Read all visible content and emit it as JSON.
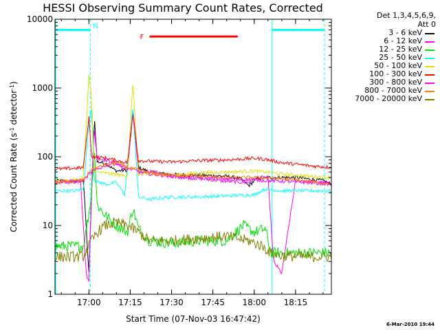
{
  "title": "HESSI Observing Summary Count Rates, Corrected",
  "ylabel": "Corrected Count Rate (s^-1 detector^-1)",
  "xlabel": "Start Time (07-Nov-03 16:47:42)",
  "legend": {
    "title_lines": [
      "Det 1,3,4,5,6,9,",
      "Att 0"
    ]
  },
  "footer": "6-Mar-2010 19:44",
  "chart_data": {
    "type": "line",
    "title": "HESSI Observing Summary Count Rates, Corrected",
    "xlabel": "Start Time (07-Nov-03 16:47:42)",
    "ylabel": "Corrected Count Rate (s^-1 detector^-1)",
    "yscale": "log",
    "ylim": [
      1,
      10000
    ],
    "xlim": [
      "16:47:42",
      "18:28:00"
    ],
    "xticks": [
      "17:00",
      "17:15",
      "17:30",
      "17:45",
      "18:00",
      "18:15"
    ],
    "yticks": [
      "1",
      "10",
      "100",
      "1000",
      "10000"
    ],
    "grid": false,
    "legend_position": "right",
    "series": [
      {
        "name": "3 - 6 keV",
        "color": "#000000",
        "points": [
          [
            "16:47:42",
            45
          ],
          [
            "16:55",
            44
          ],
          [
            "16:58",
            46
          ],
          [
            "17:00",
            2
          ],
          [
            "17:01",
            30
          ],
          [
            "17:02",
            380
          ],
          [
            "17:03",
            85
          ],
          [
            "17:06",
            80
          ],
          [
            "17:10",
            62
          ],
          [
            "17:14",
            64
          ],
          [
            "17:16",
            440
          ],
          [
            "17:18",
            70
          ],
          [
            "17:22",
            60
          ],
          [
            "17:30",
            55
          ],
          [
            "17:40",
            54
          ],
          [
            "17:50",
            52
          ],
          [
            "17:55",
            48
          ],
          [
            "17:58",
            38
          ],
          [
            "18:01",
            48
          ],
          [
            "18:06",
            50
          ],
          [
            "18:15",
            50
          ],
          [
            "18:25",
            45
          ],
          [
            "18:28",
            40
          ]
        ]
      },
      {
        "name": "6 - 12 keV",
        "color": "#ff00ff",
        "points": [
          [
            "16:47:42",
            42
          ],
          [
            "16:55",
            43
          ],
          [
            "16:57",
            45
          ],
          [
            "16:59",
            2
          ],
          [
            "17:00",
            1.5
          ],
          [
            "17:01",
            40
          ],
          [
            "17:02",
            260
          ],
          [
            "17:03",
            95
          ],
          [
            "17:06",
            90
          ],
          [
            "17:10",
            80
          ],
          [
            "17:14",
            62
          ],
          [
            "17:16",
            520
          ],
          [
            "17:18",
            55
          ],
          [
            "17:22",
            62
          ],
          [
            "17:30",
            52
          ],
          [
            "17:40",
            48
          ],
          [
            "17:50",
            44
          ],
          [
            "17:58",
            42
          ],
          [
            "18:01",
            50
          ],
          [
            "18:05",
            50
          ],
          [
            "18:07",
            3
          ],
          [
            "18:10",
            2
          ],
          [
            "18:15",
            45
          ],
          [
            "18:25",
            42
          ],
          [
            "18:28",
            40
          ]
        ]
      },
      {
        "name": "12 - 25 keV",
        "color": "#00e000",
        "points": [
          [
            "16:47:42",
            5
          ],
          [
            "16:55",
            5
          ],
          [
            "16:58",
            5
          ],
          [
            "17:00",
            15
          ],
          [
            "17:01",
            30
          ],
          [
            "17:02",
            140
          ],
          [
            "17:03",
            20
          ],
          [
            "17:06",
            14
          ],
          [
            "17:10",
            10
          ],
          [
            "17:14",
            8
          ],
          [
            "17:16",
            18
          ],
          [
            "17:18",
            9
          ],
          [
            "17:22",
            6
          ],
          [
            "17:30",
            5.5
          ],
          [
            "17:40",
            6
          ],
          [
            "17:50",
            6
          ],
          [
            "17:56",
            10
          ],
          [
            "18:00",
            8
          ],
          [
            "18:04",
            9
          ],
          [
            "18:06",
            4
          ],
          [
            "18:10",
            4
          ],
          [
            "18:20",
            4
          ],
          [
            "18:28",
            4
          ]
        ]
      },
      {
        "name": "25 - 50 keV",
        "color": "#00ffff",
        "points": [
          [
            "16:47:42",
            32
          ],
          [
            "16:55",
            32
          ],
          [
            "16:58",
            34
          ],
          [
            "17:00",
            300
          ],
          [
            "17:01",
            520
          ],
          [
            "17:02",
            45
          ],
          [
            "17:06",
            40
          ],
          [
            "17:10",
            42
          ],
          [
            "17:13",
            28
          ],
          [
            "17:16",
            520
          ],
          [
            "17:18",
            26
          ],
          [
            "17:22",
            24
          ],
          [
            "17:30",
            26
          ],
          [
            "17:40",
            26
          ],
          [
            "17:50",
            27
          ],
          [
            "18:00",
            28
          ],
          [
            "18:04",
            34
          ],
          [
            "18:10",
            32
          ],
          [
            "18:20",
            32
          ],
          [
            "18:28",
            32
          ]
        ]
      },
      {
        "name": "50 - 100 keV",
        "color": "#e0e000",
        "points": [
          [
            "16:47:42",
            44
          ],
          [
            "16:55",
            46
          ],
          [
            "16:58",
            48
          ],
          [
            "17:00",
            1500
          ],
          [
            "17:01",
            700
          ],
          [
            "17:02",
            60
          ],
          [
            "17:06",
            58
          ],
          [
            "17:10",
            55
          ],
          [
            "17:14",
            52
          ],
          [
            "17:16",
            1250
          ],
          [
            "17:18",
            55
          ],
          [
            "17:22",
            55
          ],
          [
            "17:30",
            54
          ],
          [
            "17:40",
            58
          ],
          [
            "17:50",
            60
          ],
          [
            "18:00",
            62
          ],
          [
            "18:04",
            60
          ],
          [
            "18:10",
            56
          ],
          [
            "18:20",
            52
          ],
          [
            "18:28",
            50
          ]
        ]
      },
      {
        "name": "100 - 300 keV",
        "color": "#ff0000",
        "points": [
          [
            "16:47:42",
            66
          ],
          [
            "16:55",
            68
          ],
          [
            "16:58",
            70
          ],
          [
            "17:00",
            380
          ],
          [
            "17:01",
            100
          ],
          [
            "17:06",
            96
          ],
          [
            "17:10",
            88
          ],
          [
            "17:14",
            82
          ],
          [
            "17:16",
            420
          ],
          [
            "17:18",
            88
          ],
          [
            "17:22",
            86
          ],
          [
            "17:30",
            84
          ],
          [
            "17:40",
            88
          ],
          [
            "17:50",
            90
          ],
          [
            "18:00",
            95
          ],
          [
            "18:04",
            92
          ],
          [
            "18:10",
            82
          ],
          [
            "18:20",
            74
          ],
          [
            "18:28",
            70
          ]
        ]
      },
      {
        "name": "300 - 800 keV",
        "color": "#ff00ff",
        "points": [
          [
            "16:47:42",
            43
          ],
          [
            "16:55",
            44
          ],
          [
            "16:58",
            45
          ],
          [
            "17:01",
            60
          ],
          [
            "17:06",
            75
          ],
          [
            "17:10",
            80
          ],
          [
            "17:14",
            68
          ],
          [
            "17:18",
            62
          ],
          [
            "17:22",
            56
          ],
          [
            "17:30",
            52
          ],
          [
            "17:40",
            50
          ],
          [
            "17:50",
            48
          ],
          [
            "18:00",
            46
          ],
          [
            "18:10",
            44
          ],
          [
            "18:20",
            42
          ],
          [
            "18:28",
            40
          ]
        ]
      },
      {
        "name": "800 - 7000 keV",
        "color": "#ff8000",
        "points": [
          [
            "16:47:42",
            42
          ],
          [
            "16:55",
            44
          ],
          [
            "16:58",
            46
          ],
          [
            "17:01",
            66
          ],
          [
            "17:06",
            76
          ],
          [
            "17:10",
            82
          ],
          [
            "17:14",
            70
          ],
          [
            "17:18",
            64
          ],
          [
            "17:22",
            58
          ],
          [
            "17:30",
            54
          ],
          [
            "17:40",
            52
          ],
          [
            "17:50",
            50
          ],
          [
            "18:00",
            50
          ],
          [
            "18:10",
            48
          ],
          [
            "18:20",
            44
          ],
          [
            "18:28",
            40
          ]
        ]
      },
      {
        "name": "7000 - 20000 keV",
        "color": "#808000",
        "points": [
          [
            "16:47:42",
            3.5
          ],
          [
            "16:55",
            3.5
          ],
          [
            "16:58",
            3.6
          ],
          [
            "17:01",
            6
          ],
          [
            "17:03",
            8
          ],
          [
            "17:06",
            10
          ],
          [
            "17:10",
            11
          ],
          [
            "17:14",
            10
          ],
          [
            "17:18",
            8
          ],
          [
            "17:22",
            6
          ],
          [
            "17:30",
            6
          ],
          [
            "17:40",
            6.5
          ],
          [
            "17:50",
            7
          ],
          [
            "17:58",
            6
          ],
          [
            "18:03",
            5
          ],
          [
            "18:06",
            4
          ],
          [
            "18:10",
            3.6
          ],
          [
            "18:20",
            3.5
          ],
          [
            "18:28",
            3.5
          ]
        ]
      }
    ],
    "annotations": {
      "N": {
        "label": "N",
        "start": "16:47:42",
        "end": "17:00:30",
        "color": "#00ffff"
      },
      "night2": {
        "label": "",
        "start": "18:06:30",
        "end": "18:25:30",
        "color": "#00ffff"
      },
      "F": {
        "label": "F",
        "start": "17:22:00",
        "end": "17:54:00",
        "color": "#ff0000"
      }
    }
  }
}
